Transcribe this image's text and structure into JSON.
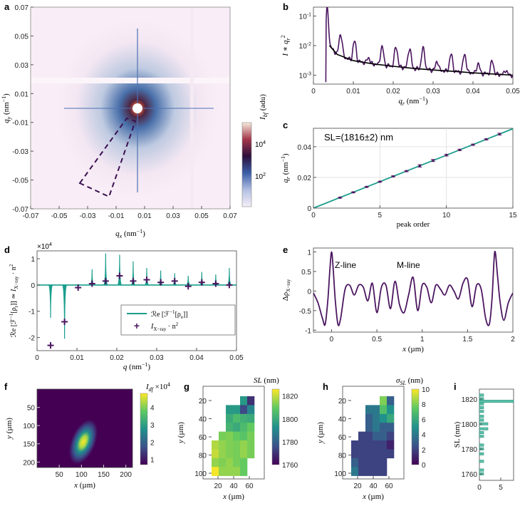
{
  "chart_data": [
    {
      "panel": "a",
      "type": "heatmap",
      "xlabel": "q_x (nm^-1)",
      "ylabel": "q_y (nm^-1)",
      "xlim": [
        -0.07,
        0.07
      ],
      "ylim": [
        -0.07,
        0.07
      ],
      "xticks": [
        "-0.07",
        "-0.05",
        "-0.03",
        "-0.01",
        "0.01",
        "0.03",
        "0.05",
        "0.07"
      ],
      "yticks": [
        "0.07",
        "0.05",
        "0.03",
        "0.01",
        "-0.01",
        "-0.03",
        "-0.05",
        "-0.07"
      ],
      "colorbar_label": "I_bf (adu)",
      "colorbar_ticks": [
        "10^4",
        "10^2"
      ],
      "mask": "dashed wedge in lower-left quadrant"
    },
    {
      "panel": "b",
      "type": "line",
      "xlabel": "q_r (nm^-1)",
      "ylabel": "I * q_r^2",
      "yscale": "log",
      "xlim": [
        0,
        0.05
      ],
      "ylim": [
        0.0005,
        0.2
      ],
      "xticks": [
        "0",
        "0.01",
        "0.02",
        "0.03",
        "0.04",
        "0.05"
      ],
      "yticks": [
        "10^-1",
        "10^-2",
        "10^-3"
      ],
      "peaks": [
        0.0034,
        0.0068,
        0.0103,
        0.0138,
        0.0172,
        0.0207,
        0.0241,
        0.0275,
        0.031,
        0.0345,
        0.0379,
        0.0413,
        0.0448,
        0.0482
      ],
      "peak_heights": [
        0.2,
        0.024,
        0.014,
        0.004,
        0.009,
        0.009,
        0.008,
        0.008,
        0.003,
        0.005,
        0.005,
        0.0025,
        0.003,
        0.0015
      ],
      "series": [
        {
          "name": "data",
          "color": "#4b1660"
        },
        {
          "name": "background",
          "color": "#000000"
        }
      ],
      "background_curve": {
        "x": [
          0.004,
          0.006,
          0.01,
          0.015,
          0.02,
          0.025,
          0.03,
          0.035,
          0.04,
          0.045,
          0.05
        ],
        "y": [
          0.01,
          0.005,
          0.0031,
          0.0024,
          0.002,
          0.0017,
          0.0015,
          0.00135,
          0.0012,
          0.0011,
          0.001
        ]
      }
    },
    {
      "panel": "c",
      "type": "scatter",
      "title": "SL=(1816±2) nm",
      "xlabel": "peak order",
      "ylabel": "q_r (nm^-1)",
      "xlim": [
        0,
        15
      ],
      "ylim": [
        0,
        0.052
      ],
      "xticks": [
        "0",
        "5",
        "10",
        "15"
      ],
      "yticks": [
        "0",
        "0.02",
        "0.04"
      ],
      "x": [
        2,
        3,
        4,
        5,
        6,
        7,
        8,
        9,
        10,
        11,
        12,
        13,
        14
      ],
      "y": [
        0.0068,
        0.0103,
        0.0138,
        0.0172,
        0.0207,
        0.0241,
        0.0275,
        0.031,
        0.0345,
        0.0379,
        0.0413,
        0.0448,
        0.0482
      ],
      "yerr": [
        0.0003,
        0.0003,
        0.0003,
        0.0003,
        0.0003,
        0.0004,
        0.0008,
        0.0007,
        0.0006,
        0.0005,
        0.0004,
        0.0004,
        0.0006
      ],
      "fit": {
        "x": [
          0,
          15
        ],
        "y": [
          0,
          0.0517
        ],
        "color": "#1a9e8c"
      }
    },
    {
      "panel": "d",
      "type": "line",
      "multiplier": "x10^4",
      "xlabel": "q (nm^-1)",
      "ylabel": "Re[F^-1[rho_r]] ≃ I_X-ray · n^2",
      "xlim": [
        0,
        0.05
      ],
      "ylim": [
        -2.5,
        1.3
      ],
      "xticks": [
        "0",
        "0.01",
        "0.02",
        "0.03",
        "0.04",
        "0.05"
      ],
      "yticks": [
        "1",
        "0",
        "-1",
        "-2"
      ],
      "legend": [
        "Re[F^-1[rho_e]]",
        "I_X-ray · n^2"
      ],
      "stems": {
        "x": [
          0.0034,
          0.0069,
          0.0103,
          0.0138,
          0.0172,
          0.0207,
          0.0241,
          0.0275,
          0.031,
          0.0345,
          0.0379,
          0.0413,
          0.0448,
          0.0482
        ],
        "y": [
          -1.25,
          -2.05,
          -0.1,
          0.6,
          1.2,
          1.15,
          0.9,
          0.65,
          0.55,
          0.45,
          0.35,
          0.5,
          0.4,
          0.65
        ]
      },
      "markers": {
        "x": [
          0.0034,
          0.0069,
          0.0103,
          0.0138,
          0.0172,
          0.0207,
          0.0241,
          0.0275,
          0.031,
          0.0345,
          0.0379,
          0.0413,
          0.0448,
          0.0482
        ],
        "y": [
          -2.3,
          -1.4,
          -0.1,
          0.05,
          0.15,
          0.35,
          0.15,
          0.2,
          0.1,
          0.15,
          -0.05,
          0.1,
          0.05,
          0.0
        ]
      }
    },
    {
      "panel": "e",
      "type": "line",
      "xlabel": "x (µm)",
      "ylabel": "Δρ_X-ray",
      "xlim": [
        -0.2,
        2
      ],
      "ylim": [
        -1.05,
        1.1
      ],
      "xticks": [
        "0",
        "0.5",
        "1",
        "1.5",
        "2"
      ],
      "yticks": [
        "1",
        "0.5",
        "0",
        "-0.5",
        "-1"
      ],
      "annotations": [
        "Z-line",
        "M-line"
      ],
      "curve": {
        "x": [
          -0.2,
          -0.15,
          -0.1,
          -0.07,
          -0.04,
          -0.02,
          0,
          0.02,
          0.04,
          0.07,
          0.1,
          0.15,
          0.2,
          0.25,
          0.3,
          0.35,
          0.4,
          0.45,
          0.5,
          0.55,
          0.6,
          0.65,
          0.7,
          0.75,
          0.8,
          0.85,
          0.9,
          0.95,
          1.0,
          1.05,
          1.1,
          1.15,
          1.2,
          1.25,
          1.3,
          1.35,
          1.4,
          1.45,
          1.5,
          1.55,
          1.6,
          1.65,
          1.7,
          1.74,
          1.77,
          1.8,
          1.83,
          1.86,
          1.9,
          1.95,
          2.0
        ],
        "y": [
          -0.05,
          -0.3,
          -0.7,
          -0.85,
          -0.2,
          0.5,
          1.0,
          0.5,
          -0.2,
          -0.85,
          -0.7,
          0.05,
          0.15,
          -0.1,
          0.15,
          0.1,
          -0.25,
          0.2,
          -0.55,
          0.1,
          0.15,
          -0.45,
          0.25,
          -0.35,
          -0.55,
          -0.1,
          0.35,
          -0.5,
          0.15,
          0.1,
          -0.3,
          0.15,
          0.05,
          -0.1,
          0.15,
          0.0,
          -0.2,
          0.2,
          0.3,
          -0.4,
          0.15,
          0.05,
          -0.7,
          -0.85,
          -0.2,
          1.0,
          0.4,
          -0.3,
          -0.75,
          -0.3,
          -0.05
        ]
      },
      "color": "#4b1660"
    },
    {
      "panel": "f",
      "type": "heatmap",
      "xlabel": "x (µm)",
      "ylabel": "y (µm)",
      "xticks": [
        "50",
        "100",
        "150",
        "200"
      ],
      "yticks": [
        "50",
        "100",
        "150",
        "200"
      ],
      "colorbar_label": "I_df x10^4",
      "colorbar_ticks": [
        "4",
        "3",
        "2",
        "1"
      ],
      "peak_center": [
        115,
        120
      ]
    },
    {
      "panel": "g",
      "type": "heatmap",
      "title": "SL (nm)",
      "xlabel": "x (µm)",
      "ylabel": "y (µm)",
      "xticks": [
        "20",
        "40",
        "60"
      ],
      "yticks": [
        "20",
        "40",
        "60",
        "80",
        "100"
      ],
      "colorbar_ticks": [
        "1820",
        "1800",
        "1780",
        "1760"
      ],
      "vmin": 1760,
      "vmax": 1826,
      "grid": [
        [
          null,
          null,
          null,
          null,
          1795,
          1770,
          null
        ],
        [
          null,
          null,
          1795,
          1795,
          1775,
          1790,
          null
        ],
        [
          null,
          null,
          1800,
          1805,
          1802,
          1800,
          null
        ],
        [
          null,
          null,
          1803,
          1800,
          1805,
          1810,
          null
        ],
        [
          null,
          1812,
          1813,
          1810,
          1808,
          1812,
          null
        ],
        [
          1818,
          1815,
          1813,
          1812,
          1815,
          1812,
          null
        ],
        [
          1820,
          1815,
          1813,
          1812,
          1815,
          1812,
          null
        ],
        [
          1815,
          1813,
          1815,
          1812,
          1810,
          null,
          null
        ],
        [
          1825,
          1815,
          1815,
          1815,
          1810,
          null,
          null
        ]
      ]
    },
    {
      "panel": "h",
      "type": "heatmap",
      "title": "σ_SL (nm)",
      "xlabel": "x (µm)",
      "ylabel": "y (µm)",
      "xticks": [
        "20",
        "40",
        "60"
      ],
      "yticks": [
        "20",
        "40",
        "60",
        "80",
        "100"
      ],
      "colorbar_ticks": [
        "10",
        "8",
        "6",
        "4",
        "2",
        "0"
      ],
      "vmin": 0,
      "vmax": 10,
      "grid": [
        [
          null,
          null,
          null,
          null,
          8,
          3,
          null
        ],
        [
          null,
          null,
          4,
          4,
          7,
          5,
          null
        ],
        [
          null,
          null,
          3,
          4,
          5,
          6,
          null
        ],
        [
          null,
          null,
          3,
          4,
          3,
          3,
          null
        ],
        [
          null,
          2,
          2,
          3,
          3,
          2,
          null
        ],
        [
          2,
          2,
          2,
          2,
          2,
          1,
          null
        ],
        [
          2,
          2,
          2,
          2,
          2,
          2,
          null
        ],
        [
          3,
          2,
          2,
          2,
          2,
          null,
          null
        ],
        [
          4,
          2,
          2,
          2,
          2,
          null,
          null
        ]
      ]
    },
    {
      "panel": "i",
      "type": "bar",
      "orientation": "horizontal",
      "xlabel": "",
      "ylabel": "SL (nm)",
      "xlim": [
        0,
        8
      ],
      "ylim": [
        1755,
        1828
      ],
      "xticks": [
        "0",
        "5"
      ],
      "yticks": [
        "1820",
        "1800",
        "1780",
        "1760"
      ],
      "categories": [
        1760,
        1763,
        1766,
        1770,
        1773,
        1776,
        1780,
        1783,
        1786,
        1790,
        1793,
        1796,
        1800,
        1803,
        1806,
        1810,
        1813,
        1816,
        1818,
        1820,
        1823
      ],
      "values": [
        1,
        1,
        0,
        1,
        0,
        1,
        1,
        1,
        0,
        1,
        1,
        2,
        2,
        1,
        1,
        1,
        1,
        1,
        8,
        1,
        1
      ]
    }
  ],
  "labels": {
    "a": "a",
    "b": "b",
    "c": "c",
    "d": "d",
    "e": "e",
    "f": "f",
    "g": "g",
    "h": "h",
    "i": "i"
  }
}
